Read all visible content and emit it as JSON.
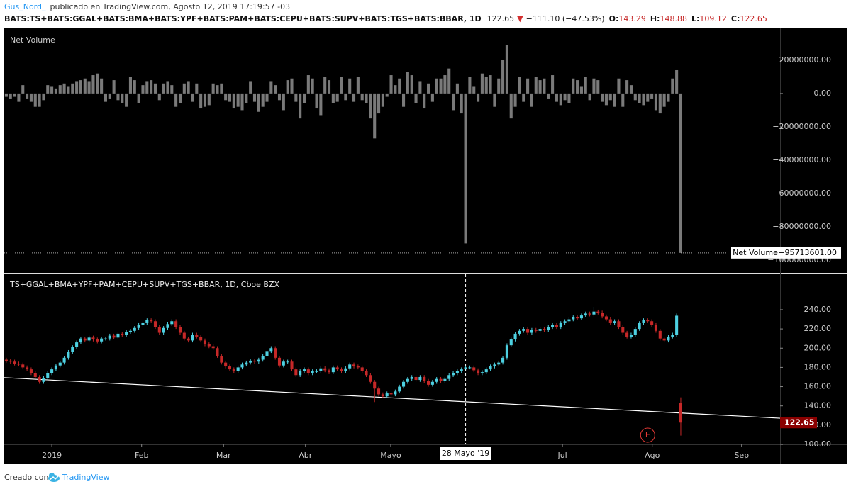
{
  "header": {
    "author": "Gus_Nord_",
    "published": "publicado en TradingView.com, Agosto 12, 2019 17:19:57 -03",
    "symbol": "BATS:TS+BATS:GGAL+BATS:BMA+BATS:YPF+BATS:PAM+BATS:CEPU+BATS:SUPV+BATS:TGS+BATS:BBAR, 1D",
    "arrow": "▼",
    "change": "−111.10 (−47.53%)",
    "o_label": "O:",
    "h_label": "H:",
    "l_label": "L:",
    "c_label": "C:"
  },
  "chart_data": [
    {
      "type": "bar",
      "title": "Net Volume",
      "series": [
        {
          "name": "Net Volume",
          "color": "#7a7a7a",
          "values": [
            -2000000,
            -3000000,
            -2000000,
            -5000000,
            5000000,
            -3000000,
            -5000000,
            -8000000,
            -8000000,
            -4000000,
            5000000,
            4000000,
            3000000,
            5000000,
            6000000,
            4000000,
            6000000,
            7000000,
            8000000,
            9000000,
            7000000,
            11000000,
            12000000,
            9000000,
            -5000000,
            -3000000,
            8000000,
            -4000000,
            -6000000,
            -8000000,
            10000000,
            8000000,
            -6000000,
            5000000,
            7000000,
            8000000,
            6000000,
            -4000000,
            6000000,
            7000000,
            5000000,
            -8000000,
            -6000000,
            6000000,
            7000000,
            -5000000,
            6000000,
            -9000000,
            -8000000,
            -7000000,
            6000000,
            5000000,
            6000000,
            -4000000,
            -5000000,
            -9000000,
            -8000000,
            -10000000,
            -6000000,
            7000000,
            -5000000,
            -11000000,
            -8000000,
            -5000000,
            7000000,
            5000000,
            -4000000,
            -10000000,
            8000000,
            9000000,
            -5000000,
            -15000000,
            -6000000,
            11000000,
            9000000,
            -9000000,
            -13000000,
            10000000,
            8000000,
            -6000000,
            -5000000,
            10000000,
            -4000000,
            9000000,
            -5000000,
            10000000,
            -4000000,
            -6000000,
            -15000000,
            -27000000,
            -12000000,
            -8000000,
            -2000000,
            11000000,
            5000000,
            9000000,
            -8000000,
            13000000,
            11000000,
            -6000000,
            7000000,
            -9000000,
            6000000,
            -5000000,
            9000000,
            9000000,
            11000000,
            15000000,
            -10000000,
            6000000,
            -12000000,
            -90000000,
            10000000,
            4000000,
            -5000000,
            12000000,
            10000000,
            11000000,
            -8000000,
            9000000,
            20000000,
            29000000,
            -15000000,
            -8000000,
            10000000,
            -5000000,
            9000000,
            -8000000,
            10000000,
            8000000,
            9000000,
            -3000000,
            11000000,
            -5000000,
            -7000000,
            -4000000,
            -6000000,
            9000000,
            8000000,
            4000000,
            10000000,
            -4000000,
            9000000,
            8000000,
            -5000000,
            -7000000,
            -4000000,
            -8000000,
            9000000,
            -8000000,
            8000000,
            5000000,
            -4000000,
            -6000000,
            -7000000,
            -5000000,
            -3000000,
            -10000000,
            -12000000,
            -8000000,
            -5000000,
            9000000,
            14000000,
            -95713601
          ]
        }
      ],
      "last_value_label": "−95713601.00",
      "xlim": [
        -0.5,
        187
      ],
      "ylim": [
        -107700000,
        39100000
      ],
      "yticks": [
        {
          "value": 20000000,
          "label": "20000000.00"
        },
        {
          "value": 0,
          "label": "0.00"
        },
        {
          "value": -20000000,
          "label": "−20000000.00"
        },
        {
          "value": -40000000,
          "label": "−40000000.00"
        },
        {
          "value": -60000000,
          "label": "−60000000.00"
        },
        {
          "value": -80000000,
          "label": "−80000000.00"
        },
        {
          "value": -100000000,
          "label": "−100000000.00"
        }
      ]
    },
    {
      "type": "candlestick",
      "title": "TS+GGAL+BMA+YPF+PAM+CEPU+SUPV+TGS+BBAR, 1D, Cboe BZX",
      "up_color": "#4dd0e1",
      "down_color": "#c62828",
      "ohlc": [
        [
          188,
          190,
          185,
          187
        ],
        [
          187,
          189,
          184,
          186
        ],
        [
          186,
          188,
          182,
          184
        ],
        [
          184,
          186,
          181,
          183
        ],
        [
          183,
          185,
          178,
          180
        ],
        [
          180,
          182,
          176,
          178
        ],
        [
          178,
          180,
          172,
          174
        ],
        [
          174,
          176,
          168,
          170
        ],
        [
          170,
          172,
          163,
          165
        ],
        [
          165,
          171,
          163,
          169
        ],
        [
          169,
          176,
          167,
          174
        ],
        [
          174,
          180,
          172,
          178
        ],
        [
          178,
          184,
          176,
          182
        ],
        [
          182,
          187,
          180,
          185
        ],
        [
          185,
          192,
          183,
          190
        ],
        [
          190,
          198,
          188,
          196
        ],
        [
          196,
          203,
          194,
          201
        ],
        [
          201,
          208,
          199,
          206
        ],
        [
          206,
          212,
          204,
          210
        ],
        [
          210,
          212,
          206,
          208
        ],
        [
          208,
          213,
          206,
          211
        ],
        [
          211,
          213,
          207,
          209
        ],
        [
          209,
          211,
          205,
          207
        ],
        [
          207,
          212,
          205,
          210
        ],
        [
          210,
          212,
          208,
          210
        ],
        [
          210,
          215,
          208,
          213
        ],
        [
          213,
          215,
          209,
          211
        ],
        [
          211,
          217,
          209,
          215
        ],
        [
          215,
          217,
          212,
          214
        ],
        [
          214,
          219,
          212,
          217
        ],
        [
          217,
          220,
          215,
          218
        ],
        [
          218,
          223,
          216,
          221
        ],
        [
          221,
          226,
          219,
          224
        ],
        [
          224,
          228,
          222,
          226
        ],
        [
          226,
          231,
          224,
          229
        ],
        [
          229,
          231,
          226,
          228
        ],
        [
          228,
          230,
          220,
          222
        ],
        [
          222,
          224,
          214,
          216
        ],
        [
          216,
          223,
          214,
          221
        ],
        [
          221,
          227,
          219,
          225
        ],
        [
          225,
          230,
          223,
          228
        ],
        [
          228,
          230,
          220,
          222
        ],
        [
          222,
          224,
          214,
          216
        ],
        [
          216,
          218,
          208,
          210
        ],
        [
          210,
          212,
          206,
          208
        ],
        [
          208,
          216,
          206,
          214
        ],
        [
          214,
          216,
          210,
          212
        ],
        [
          212,
          214,
          206,
          208
        ],
        [
          208,
          210,
          202,
          204
        ],
        [
          204,
          206,
          200,
          202
        ],
        [
          202,
          204,
          198,
          200
        ],
        [
          200,
          202,
          190,
          192
        ],
        [
          192,
          194,
          183,
          185
        ],
        [
          185,
          187,
          179,
          181
        ],
        [
          181,
          183,
          176,
          178
        ],
        [
          178,
          180,
          174,
          176
        ],
        [
          176,
          182,
          174,
          180
        ],
        [
          180,
          185,
          178,
          183
        ],
        [
          183,
          187,
          181,
          185
        ],
        [
          185,
          189,
          183,
          187
        ],
        [
          187,
          189,
          184,
          186
        ],
        [
          186,
          190,
          184,
          188
        ],
        [
          188,
          194,
          186,
          192
        ],
        [
          192,
          199,
          190,
          197
        ],
        [
          197,
          202,
          195,
          200
        ],
        [
          200,
          202,
          188,
          190
        ],
        [
          190,
          192,
          180,
          182
        ],
        [
          182,
          188,
          180,
          186
        ],
        [
          186,
          188,
          184,
          186
        ],
        [
          186,
          188,
          176,
          178
        ],
        [
          178,
          180,
          170,
          172
        ],
        [
          172,
          178,
          170,
          176
        ],
        [
          176,
          180,
          174,
          178
        ],
        [
          178,
          180,
          172,
          174
        ],
        [
          174,
          178,
          172,
          176
        ],
        [
          176,
          178,
          174,
          176
        ],
        [
          176,
          181,
          174,
          179
        ],
        [
          179,
          181,
          175,
          177
        ],
        [
          177,
          179,
          173,
          175
        ],
        [
          175,
          182,
          173,
          180
        ],
        [
          180,
          182,
          176,
          178
        ],
        [
          178,
          180,
          174,
          176
        ],
        [
          176,
          181,
          174,
          179
        ],
        [
          179,
          185,
          177,
          183
        ],
        [
          183,
          185,
          179,
          181
        ],
        [
          181,
          183,
          178,
          180
        ],
        [
          180,
          182,
          174,
          176
        ],
        [
          176,
          178,
          170,
          172
        ],
        [
          172,
          174,
          163,
          165
        ],
        [
          165,
          167,
          144,
          158
        ],
        [
          158,
          160,
          150,
          152
        ],
        [
          152,
          154,
          148,
          150
        ],
        [
          150,
          155,
          148,
          153
        ],
        [
          153,
          155,
          150,
          152
        ],
        [
          152,
          157,
          150,
          155
        ],
        [
          155,
          162,
          153,
          160
        ],
        [
          160,
          167,
          158,
          165
        ],
        [
          165,
          170,
          163,
          168
        ],
        [
          168,
          172,
          166,
          170
        ],
        [
          170,
          172,
          165,
          167
        ],
        [
          167,
          172,
          165,
          170
        ],
        [
          170,
          172,
          164,
          166
        ],
        [
          166,
          168,
          160,
          162
        ],
        [
          162,
          167,
          160,
          165
        ],
        [
          165,
          170,
          163,
          168
        ],
        [
          168,
          170,
          164,
          166
        ],
        [
          166,
          170,
          164,
          168
        ],
        [
          168,
          174,
          166,
          172
        ],
        [
          172,
          176,
          170,
          174
        ],
        [
          174,
          178,
          172,
          176
        ],
        [
          176,
          180,
          174,
          178
        ],
        [
          178,
          182,
          176,
          180
        ],
        [
          180,
          182,
          178,
          180
        ],
        [
          180,
          182,
          175,
          177
        ],
        [
          177,
          179,
          172,
          174
        ],
        [
          174,
          177,
          172,
          175
        ],
        [
          175,
          180,
          173,
          178
        ],
        [
          178,
          183,
          176,
          181
        ],
        [
          181,
          185,
          179,
          183
        ],
        [
          183,
          187,
          181,
          185
        ],
        [
          185,
          192,
          183,
          190
        ],
        [
          190,
          205,
          188,
          203
        ],
        [
          203,
          211,
          201,
          209
        ],
        [
          209,
          217,
          207,
          215
        ],
        [
          215,
          220,
          213,
          218
        ],
        [
          218,
          222,
          216,
          220
        ],
        [
          220,
          222,
          214,
          216
        ],
        [
          216,
          221,
          214,
          219
        ],
        [
          219,
          221,
          216,
          218
        ],
        [
          218,
          222,
          216,
          220
        ],
        [
          220,
          222,
          217,
          219
        ],
        [
          219,
          224,
          217,
          222
        ],
        [
          222,
          226,
          220,
          224
        ],
        [
          224,
          226,
          220,
          222
        ],
        [
          222,
          228,
          220,
          226
        ],
        [
          226,
          230,
          224,
          228
        ],
        [
          228,
          232,
          226,
          230
        ],
        [
          230,
          234,
          228,
          232
        ],
        [
          232,
          234,
          229,
          231
        ],
        [
          231,
          236,
          229,
          234
        ],
        [
          234,
          238,
          232,
          236
        ],
        [
          236,
          238,
          233,
          235
        ],
        [
          235,
          243,
          233,
          238
        ],
        [
          238,
          240,
          235,
          237
        ],
        [
          237,
          239,
          231,
          233
        ],
        [
          233,
          235,
          228,
          230
        ],
        [
          230,
          232,
          224,
          226
        ],
        [
          226,
          230,
          224,
          228
        ],
        [
          228,
          230,
          220,
          222
        ],
        [
          222,
          224,
          214,
          216
        ],
        [
          216,
          218,
          210,
          212
        ],
        [
          212,
          216,
          210,
          214
        ],
        [
          214,
          222,
          212,
          220
        ],
        [
          220,
          228,
          218,
          226
        ],
        [
          226,
          231,
          224,
          229
        ],
        [
          229,
          231,
          226,
          228
        ],
        [
          228,
          230,
          222,
          224
        ],
        [
          224,
          226,
          216,
          218
        ],
        [
          218,
          220,
          208,
          210
        ],
        [
          210,
          212,
          206,
          208
        ],
        [
          208,
          214,
          206,
          212
        ],
        [
          212,
          216,
          210,
          214
        ],
        [
          214,
          236,
          212,
          233.75
        ],
        [
          143.29,
          148.88,
          109.12,
          122.65
        ]
      ],
      "xlim": [
        -0.5,
        187
      ],
      "xticks": [
        {
          "value": 11,
          "label": "2019"
        },
        {
          "value": 32.7,
          "label": "Feb"
        },
        {
          "value": 52.5,
          "label": "Mar"
        },
        {
          "value": 72.3,
          "label": "Abr"
        },
        {
          "value": 92.9,
          "label": "Mayo"
        },
        {
          "value": 134.4,
          "label": "Jul"
        },
        {
          "value": 156.1,
          "label": "Ago"
        },
        {
          "value": 177.7,
          "label": "Sep"
        }
      ],
      "ylim": [
        100,
        276.8
      ],
      "yticks": [
        {
          "value": 100,
          "label": "100.00"
        },
        {
          "value": 120,
          "label": "120.00"
        },
        {
          "value": 140,
          "label": "140.00"
        },
        {
          "value": 160,
          "label": "160.00"
        },
        {
          "value": 180,
          "label": "180.00"
        },
        {
          "value": 200,
          "label": "200.00"
        },
        {
          "value": 220,
          "label": "220.00"
        },
        {
          "value": 240,
          "label": "240.00"
        }
      ],
      "crosshair": {
        "x": 111,
        "label": "28 Mayo '19"
      },
      "trendline": {
        "x": [
          -0.5,
          187
        ],
        "y": [
          169.4,
          127.2
        ]
      },
      "event_marker": {
        "x": 155,
        "y": 109.6,
        "label": "E"
      }
    }
  ],
  "footer": {
    "text": "Creado con",
    "brand": "TradingView"
  }
}
